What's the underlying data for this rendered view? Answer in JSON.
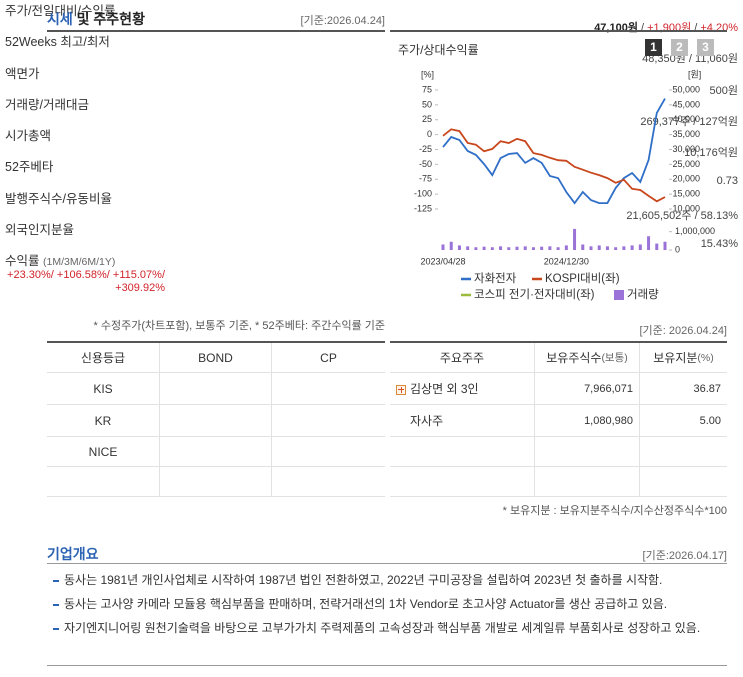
{
  "header": {
    "title_accent": "시세",
    "title_rest": "및 주주현황",
    "date": "[기준:2026.04.24]"
  },
  "summary": {
    "rows": [
      {
        "label": "주가/전일대비/수익률",
        "parts": [
          {
            "text": "47,100원",
            "tone": "strong"
          },
          {
            "text": " / ",
            "tone": "plain"
          },
          {
            "text": "+1,900원",
            "tone": "up"
          },
          {
            "text": " / ",
            "tone": "plain"
          },
          {
            "text": "+4.20%",
            "tone": "up"
          }
        ]
      },
      {
        "label": "52Weeks 최고/최저",
        "parts": [
          {
            "text": "48,350원 / 11,060원",
            "tone": "plain"
          }
        ]
      },
      {
        "label": "액면가",
        "parts": [
          {
            "text": "500원",
            "tone": "plain"
          }
        ]
      },
      {
        "label": "거래량/거래대금",
        "parts": [
          {
            "text": "269,377주 / 127억원",
            "tone": "plain"
          }
        ]
      },
      {
        "label": "시가총액",
        "parts": [
          {
            "text": "10,176억원",
            "tone": "plain"
          }
        ]
      },
      {
        "label": "52주베타",
        "parts": [
          {
            "text": "0.73",
            "tone": "plain"
          }
        ]
      },
      {
        "label": "발행주식수/유동비율",
        "parts": [
          {
            "text": "21,605,502주 / 58.13%",
            "tone": "plain"
          }
        ]
      },
      {
        "label": "외국인지분율",
        "parts": [
          {
            "text": "15.43%",
            "tone": "plain"
          }
        ]
      },
      {
        "label": "수익률",
        "label_sub": "(1M/3M/6M/1Y)",
        "parts": [
          {
            "text": "+23.30%",
            "tone": "up"
          },
          {
            "text": "/ ",
            "tone": "up"
          },
          {
            "text": "+106.58%",
            "tone": "up"
          },
          {
            "text": "/ ",
            "tone": "up"
          },
          {
            "text": "+115.07%",
            "tone": "up"
          },
          {
            "text": "/ ",
            "tone": "up"
          },
          {
            "text": "+309.92%",
            "tone": "up"
          }
        ]
      }
    ],
    "note": "* 수정주가(차트포함), 보통주 기준, * 52주베타: 주간수익률 기준"
  },
  "chart_panel": {
    "title": "주가/상대수익률",
    "tabs": [
      "1",
      "2",
      "3"
    ],
    "active_tab": 0,
    "y_unit": "[%]",
    "y2_unit": "[원]"
  },
  "chart_data": {
    "type": "line",
    "categories": [
      "2023/04/28",
      null,
      null,
      null,
      null,
      null,
      null,
      null,
      null,
      null,
      null,
      null,
      null,
      null,
      null,
      "2024/12/30",
      null,
      null,
      null,
      null,
      null,
      null,
      null,
      null,
      null,
      null,
      null,
      null
    ],
    "series": [
      {
        "name": "자화전자",
        "color": "#2f6fc7",
        "axis": "y2",
        "values": [
          30800,
          34200,
          33200,
          29500,
          28200,
          25100,
          21400,
          27100,
          28500,
          28800,
          25500,
          27100,
          25500,
          21100,
          20400,
          15700,
          12000,
          15700,
          13000,
          12000,
          12000,
          17100,
          20400,
          22100,
          19100,
          26500,
          42300,
          47100
        ]
      },
      {
        "name": "KOSPI대비(좌)",
        "color": "#c8471d",
        "axis": "y",
        "values": [
          -2,
          9,
          6,
          -14,
          -17,
          -28,
          -24,
          -11,
          -14,
          -7,
          -11,
          -31,
          -34,
          -39,
          -43,
          -44,
          -54,
          -59,
          -64,
          -68,
          -73,
          -81,
          -76,
          -91,
          -93,
          -103,
          -112,
          -105
        ]
      },
      {
        "name": "코스피 전기·전자대비(좌)",
        "color": "#9bbb3b",
        "axis": "y",
        "values": [
          null,
          null,
          null,
          null,
          null,
          null,
          null,
          null,
          null,
          null,
          null,
          null,
          null,
          null,
          null,
          null,
          null,
          null,
          null,
          null,
          null,
          null,
          null,
          null,
          null,
          null,
          null,
          null
        ]
      },
      {
        "name": "거래량",
        "color": "#9b72d8",
        "axis": "volume",
        "kind": "bar",
        "values": [
          300000,
          450000,
          250000,
          200000,
          150000,
          180000,
          150000,
          200000,
          150000,
          180000,
          200000,
          150000,
          180000,
          200000,
          150000,
          250000,
          1150000,
          300000,
          200000,
          250000,
          200000,
          150000,
          200000,
          250000,
          300000,
          750000,
          350000,
          450000
        ]
      }
    ],
    "ylim": [
      -125,
      75
    ],
    "yticks": [
      75,
      50,
      25,
      0,
      -25,
      -50,
      -75,
      -100,
      -125
    ],
    "y2lim": [
      10000,
      50000
    ],
    "y2ticks": [
      {
        "value": 50000,
        "label": "50,000"
      },
      {
        "value": 45000,
        "label": "45,000"
      },
      {
        "value": 40000,
        "label": "40,000"
      },
      {
        "value": 35000,
        "label": "35,000"
      },
      {
        "value": 30000,
        "label": "30,000"
      },
      {
        "value": 25000,
        "label": "25,000"
      },
      {
        "value": 20000,
        "label": "20,000"
      },
      {
        "value": 15000,
        "label": "15,000"
      },
      {
        "value": 10000,
        "label": "10,000"
      }
    ],
    "volume_lim": [
      0,
      1200000
    ],
    "volume_ticks": [
      {
        "value": 1000000,
        "label": "1,000,000"
      },
      0
    ]
  },
  "credit": {
    "headers": [
      "신용등급",
      "BOND",
      "CP"
    ],
    "rows": [
      [
        "KIS"
      ],
      [
        "KR"
      ],
      [
        "NICE"
      ]
    ]
  },
  "shareholders": {
    "date": "[기준: 2026.04.24]",
    "headers": [
      {
        "text": "주요주주"
      },
      {
        "text": "보유주식수",
        "sub": "(보통)"
      },
      {
        "text": "보유지분",
        "sub": "(%)"
      }
    ],
    "rows": [
      {
        "name": "김상면 외 3인",
        "expandable": true,
        "shares": "7,966,071",
        "pct": "36.87"
      },
      {
        "name": "자사주",
        "shares": "1,080,980",
        "pct": "5.00"
      }
    ],
    "note": "* 보유지분 : 보유지분주식수/지수산정주식수*100"
  },
  "overview": {
    "title": "기업개요",
    "date": "[기준:2026.04.17]",
    "items": [
      "동사는 1981년 개인사업체로 시작하여 1987년 법인 전환하였고, 2022년 구미공장을 설립하여 2023년 첫 출하를 시작함.",
      "동사는 고사양 카메라 모듈용 핵심부품을 판매하며, 전략거래선의 1차 Vendor로 초고사양 Actuator를 생산 공급하고 있음.",
      "자기엔지니어링 원천기술력을 바탕으로 고부가가치 주력제품의 고속성장과 핵심부품 개발로 세계일류 부품회사로 성장하고 있음."
    ]
  }
}
